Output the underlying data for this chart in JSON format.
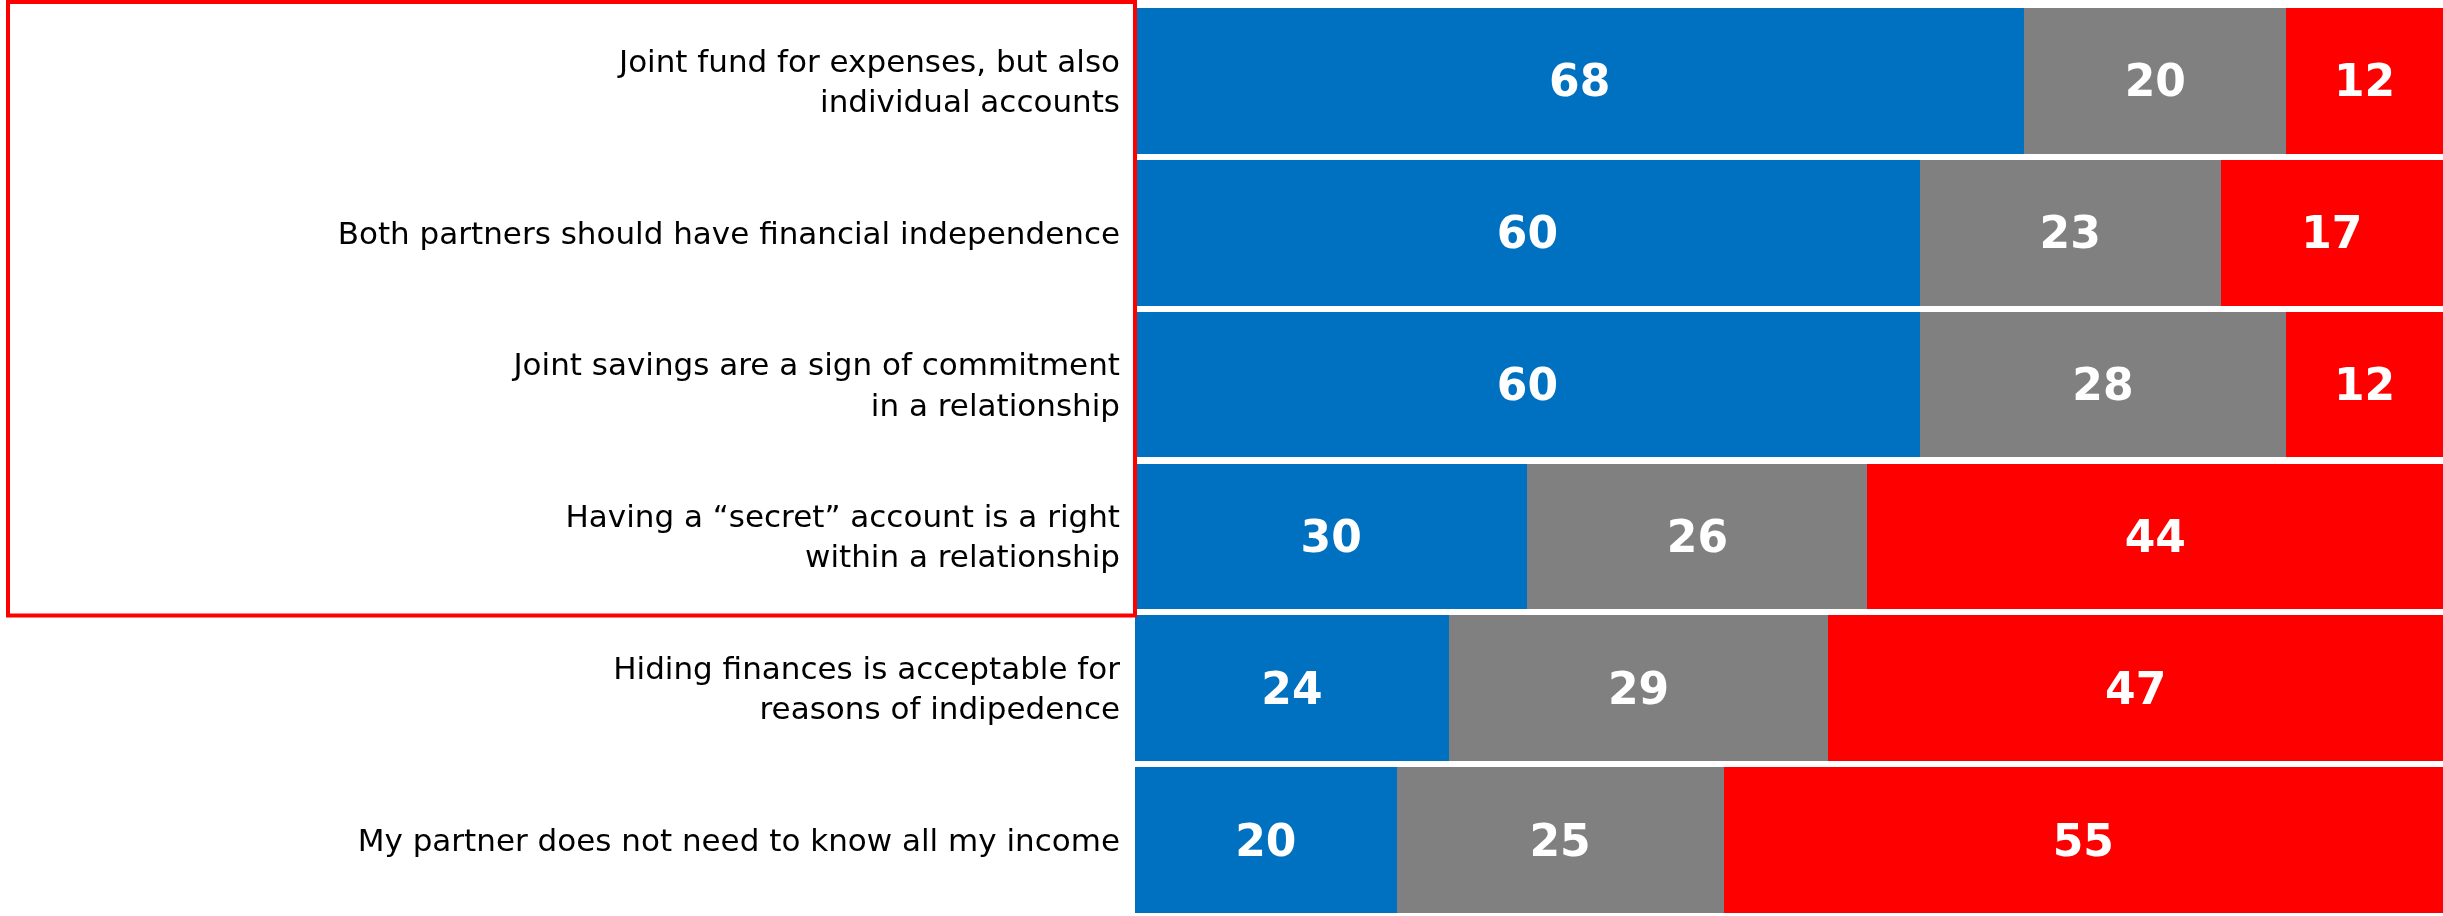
{
  "chart_data": {
    "type": "bar",
    "orientation": "horizontal",
    "stacked": true,
    "data_labels": true,
    "tick_labels": "y",
    "categories": [
      "Joint fund for expenses, but also individual accounts",
      "Both partners should have financial independence",
      "Joint savings are a sign of commitment in a relationship",
      "Having a “secret” account is a right within a relationship",
      "Hiding finances is acceptable for reasons of indipedence",
      "My partner does not need to know all my income"
    ],
    "series": [
      {
        "color": "#0070c0",
        "values": [
          68,
          60,
          60,
          30,
          24,
          20
        ]
      },
      {
        "color": "#808080",
        "values": [
          20,
          23,
          28,
          26,
          29,
          25
        ]
      },
      {
        "color": "#ff0000",
        "values": [
          12,
          17,
          12,
          44,
          47,
          55
        ]
      }
    ]
  }
}
